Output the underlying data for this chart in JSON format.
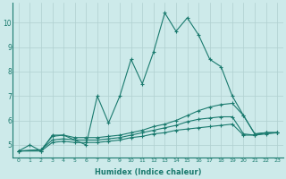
{
  "xlabel": "Humidex (Indice chaleur)",
  "background_color": "#cdeaea",
  "grid_color": "#b0d0d0",
  "line_color": "#1a7a6e",
  "xlim": [
    -0.5,
    23.5
  ],
  "ylim": [
    4.5,
    10.8
  ],
  "yticks": [
    5,
    6,
    7,
    8,
    9,
    10
  ],
  "xticks": [
    0,
    1,
    2,
    3,
    4,
    5,
    6,
    7,
    8,
    9,
    10,
    11,
    12,
    13,
    14,
    15,
    16,
    17,
    18,
    19,
    20,
    21,
    22,
    23
  ],
  "series": [
    {
      "x": [
        0,
        1,
        2,
        3,
        4,
        5,
        6,
        7,
        8,
        9,
        10,
        11,
        12,
        13,
        14,
        15,
        16,
        17,
        18,
        19,
        20,
        21,
        22,
        23
      ],
      "y": [
        4.75,
        5.0,
        4.75,
        5.4,
        5.4,
        5.2,
        5.0,
        7.0,
        5.9,
        7.0,
        8.5,
        7.5,
        8.8,
        10.4,
        9.65,
        10.2,
        9.5,
        8.5,
        8.2,
        7.0,
        6.2,
        5.45,
        5.5,
        5.5
      ]
    },
    {
      "x": [
        0,
        2,
        3,
        4,
        5,
        6,
        7,
        8,
        9,
        10,
        11,
        12,
        13,
        14,
        15,
        16,
        17,
        18,
        19,
        20,
        21,
        22,
        23
      ],
      "y": [
        4.75,
        4.8,
        5.35,
        5.4,
        5.3,
        5.3,
        5.3,
        5.35,
        5.4,
        5.5,
        5.6,
        5.75,
        5.85,
        6.0,
        6.2,
        6.4,
        6.55,
        6.65,
        6.7,
        6.2,
        5.45,
        5.5,
        5.5
      ]
    },
    {
      "x": [
        0,
        2,
        3,
        4,
        5,
        6,
        7,
        8,
        9,
        10,
        11,
        12,
        13,
        14,
        15,
        16,
        17,
        18,
        19,
        20,
        21,
        22,
        23
      ],
      "y": [
        4.75,
        4.8,
        5.2,
        5.25,
        5.2,
        5.2,
        5.2,
        5.25,
        5.3,
        5.4,
        5.5,
        5.6,
        5.7,
        5.8,
        5.95,
        6.05,
        6.1,
        6.15,
        6.15,
        5.45,
        5.4,
        5.5,
        5.5
      ]
    },
    {
      "x": [
        0,
        2,
        3,
        4,
        5,
        6,
        7,
        8,
        9,
        10,
        11,
        12,
        13,
        14,
        15,
        16,
        17,
        18,
        19,
        20,
        21,
        22,
        23
      ],
      "y": [
        4.75,
        4.75,
        5.1,
        5.15,
        5.1,
        5.1,
        5.1,
        5.15,
        5.2,
        5.3,
        5.35,
        5.45,
        5.5,
        5.6,
        5.65,
        5.7,
        5.75,
        5.8,
        5.85,
        5.4,
        5.4,
        5.45,
        5.5
      ]
    }
  ]
}
